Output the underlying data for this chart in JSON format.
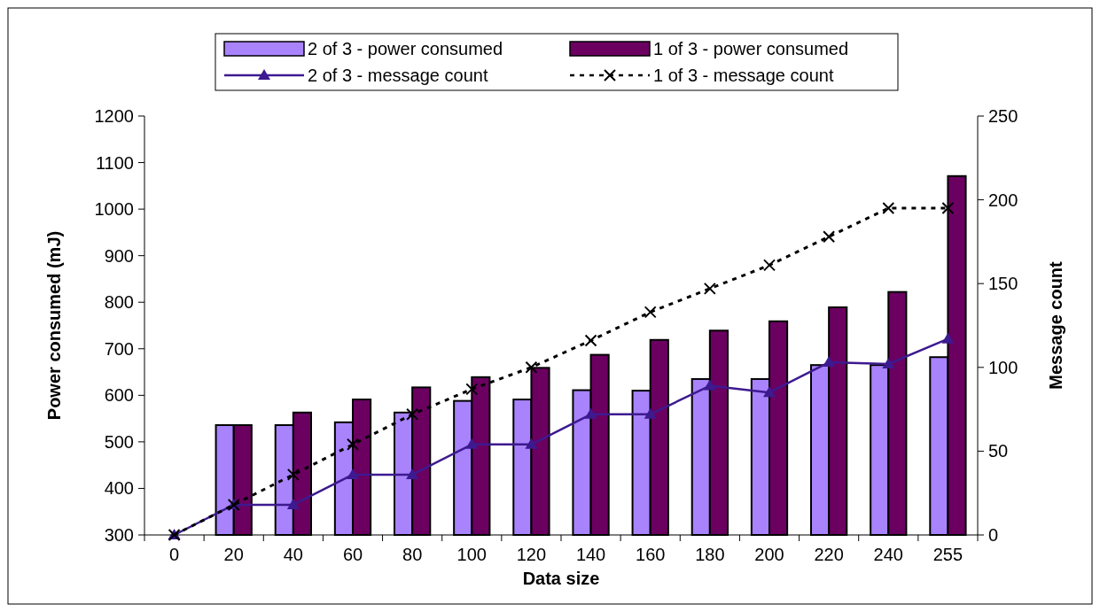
{
  "chart_data": {
    "type": "bar",
    "xlabel": "Data size",
    "ylabel": "Power consumed (mJ)",
    "y2label": "Message count",
    "categories": [
      "0",
      "20",
      "40",
      "60",
      "80",
      "100",
      "120",
      "140",
      "160",
      "180",
      "200",
      "220",
      "240",
      "255"
    ],
    "ylim": [
      300,
      1200
    ],
    "yticks": [
      300,
      400,
      500,
      600,
      700,
      800,
      900,
      1000,
      1100,
      1200
    ],
    "y2lim": [
      0,
      250
    ],
    "y2ticks": [
      0,
      50,
      100,
      150,
      200,
      250
    ],
    "legend": "top",
    "grid": false,
    "series": [
      {
        "name": "2 of 3 - power consumed",
        "color": "#a883fc",
        "values": [
          null,
          536,
          536,
          542,
          563,
          588,
          591,
          611,
          610,
          635,
          635,
          665,
          665,
          682
        ]
      },
      {
        "name": "1 of 3 - power consumed",
        "color": "#6b0061",
        "values": [
          null,
          536,
          563,
          591,
          617,
          639,
          659,
          687,
          719,
          739,
          759,
          789,
          822,
          1071
        ]
      },
      {
        "name": "2 of 3 - message count",
        "type": "line",
        "axis": "y2",
        "color": "#3d1a8f",
        "marker": "triangle",
        "line_style": "solid",
        "values": [
          0,
          18,
          18,
          36,
          36,
          54,
          54,
          72,
          72,
          89,
          85,
          103,
          102,
          117
        ]
      },
      {
        "name": "1 of 3 - message count",
        "type": "line",
        "axis": "y2",
        "color": "#000000",
        "marker": "cross",
        "line_style": "dashed",
        "values": [
          0,
          18,
          36,
          54,
          72,
          87,
          100,
          116,
          133,
          147,
          161,
          178,
          195,
          195
        ]
      }
    ]
  }
}
